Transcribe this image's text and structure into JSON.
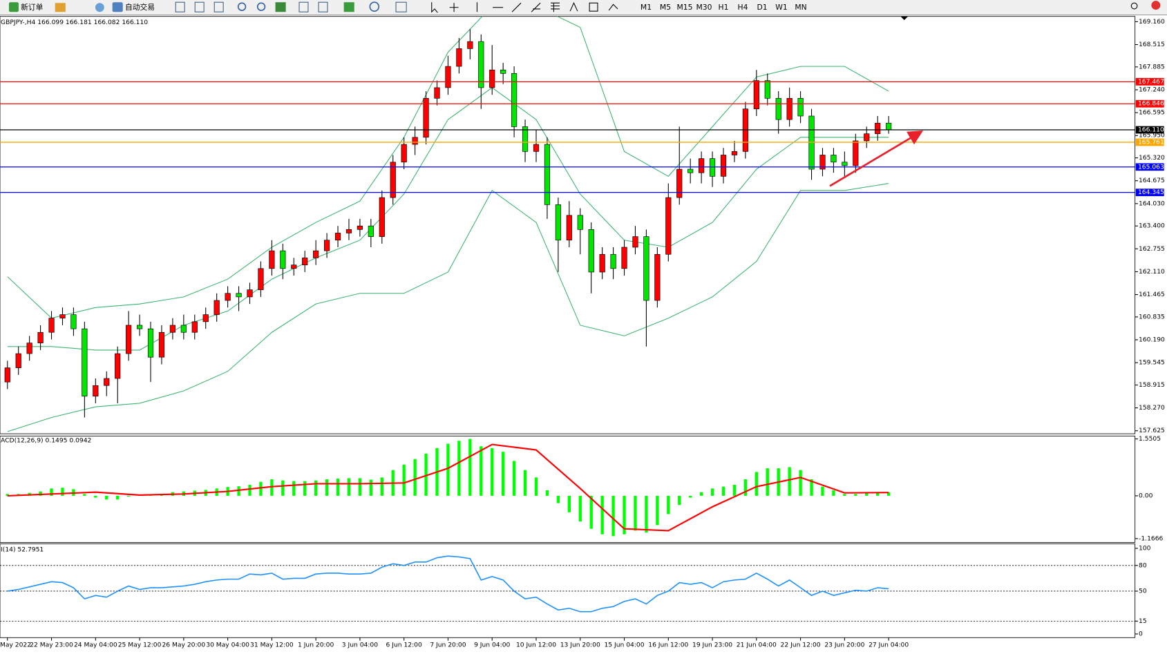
{
  "toolbar": {
    "new_order": "新订单",
    "auto_trade": "自动交易",
    "timeframes": [
      "M1",
      "M5",
      "M15",
      "M30",
      "H1",
      "H4",
      "D1",
      "W1",
      "MN"
    ]
  },
  "chart_data": {
    "type": "candlestick",
    "title": "GBPJPY-,H4 166.099 166.181 166.082 166.110",
    "categories": [
      "May 2022",
      null,
      null,
      null,
      "22 May 23:00",
      null,
      null,
      null,
      "24 May 04:00",
      null,
      null,
      null,
      "25 May 12:00",
      null,
      null,
      null,
      "26 May 20:00",
      null,
      null,
      null,
      "30 May 04:00",
      null,
      null,
      null,
      "31 May 12:00",
      null,
      null,
      null,
      "1 Jun 20:00",
      null,
      null,
      null,
      "3 Jun 04:00",
      null,
      null,
      null,
      "6 Jun 12:00",
      null,
      null,
      null,
      "7 Jun 20:00",
      null,
      null,
      null,
      "9 Jun 04:00",
      null,
      null,
      null,
      "10 Jun 12:00",
      null,
      null,
      null,
      "13 Jun 20:00",
      null,
      null,
      null,
      "15 Jun 04:00",
      null,
      null,
      null,
      "16 Jun 12:00",
      null,
      null,
      null,
      "19 Jun 23:00",
      null,
      null,
      null,
      "21 Jun 04:00",
      null,
      null,
      null,
      "22 Jun 12:00",
      null,
      null,
      null,
      "23 Jun 20:00",
      null,
      null,
      null,
      "27 Jun 04:00"
    ],
    "open": [
      159.0,
      159.4,
      159.8,
      160.1,
      160.4,
      160.8,
      160.9,
      160.5,
      158.6,
      158.9,
      159.1,
      159.8,
      160.6,
      160.5,
      159.7,
      160.4,
      160.6,
      160.4,
      160.7,
      160.9,
      161.3,
      161.5,
      161.4,
      161.6,
      162.2,
      162.7,
      162.2,
      162.3,
      162.5,
      162.7,
      163.0,
      163.2,
      163.3,
      163.4,
      163.1,
      164.2,
      165.2,
      165.7,
      165.9,
      167.0,
      167.3,
      167.9,
      168.4,
      168.6,
      167.3,
      167.8,
      167.7,
      166.2,
      165.5,
      165.7,
      164.0,
      163.0,
      163.7,
      163.3,
      162.1,
      162.6,
      162.2,
      162.8,
      163.1,
      161.3,
      162.6,
      164.2,
      165.0,
      164.9,
      165.3,
      164.8,
      165.4,
      165.5,
      166.7,
      167.5,
      167.0,
      166.4,
      167.0,
      166.5,
      165.0,
      165.4,
      165.2,
      165.1,
      165.8,
      166.0,
      166.3
    ],
    "high": [
      159.6,
      160.0,
      160.3,
      160.6,
      161.0,
      161.1,
      161.1,
      160.7,
      159.1,
      159.3,
      160.0,
      161.0,
      160.9,
      160.7,
      160.6,
      160.8,
      160.9,
      160.9,
      161.1,
      161.5,
      161.7,
      161.7,
      161.8,
      162.4,
      163.0,
      162.9,
      162.5,
      162.7,
      163.0,
      163.2,
      163.4,
      163.6,
      163.6,
      163.6,
      164.4,
      165.4,
      165.9,
      166.2,
      167.2,
      167.5,
      168.2,
      168.7,
      168.95,
      168.8,
      168.5,
      168.0,
      167.9,
      166.4,
      166.1,
      165.9,
      164.2,
      164.1,
      163.9,
      163.5,
      162.8,
      162.8,
      163.0,
      163.4,
      163.3,
      162.8,
      164.6,
      166.2,
      165.3,
      165.5,
      165.5,
      165.6,
      165.8,
      166.9,
      167.8,
      167.7,
      167.2,
      167.3,
      167.2,
      166.7,
      165.6,
      165.6,
      165.5,
      166.0,
      166.2,
      166.5,
      166.5
    ],
    "low": [
      158.8,
      159.2,
      159.6,
      159.9,
      160.2,
      160.6,
      160.3,
      158.0,
      158.4,
      158.6,
      158.4,
      159.6,
      160.3,
      159.0,
      159.5,
      160.2,
      160.2,
      160.2,
      160.5,
      160.7,
      161.1,
      161.0,
      161.2,
      161.4,
      162.0,
      161.9,
      162.0,
      162.1,
      162.3,
      162.5,
      162.8,
      163.0,
      163.1,
      162.8,
      162.9,
      164.0,
      165.0,
      165.4,
      165.7,
      166.8,
      167.1,
      167.7,
      168.1,
      166.7,
      167.1,
      167.4,
      165.9,
      165.2,
      165.2,
      163.6,
      162.1,
      162.8,
      162.6,
      161.5,
      161.9,
      161.9,
      162.0,
      162.6,
      160.0,
      161.1,
      162.4,
      164.0,
      164.6,
      164.6,
      164.5,
      164.6,
      165.2,
      165.3,
      166.5,
      166.8,
      166.0,
      166.2,
      166.3,
      164.7,
      164.8,
      164.9,
      164.8,
      164.9,
      165.6,
      165.8,
      166.0
    ],
    "close": [
      159.4,
      159.8,
      160.1,
      160.4,
      160.8,
      160.9,
      160.5,
      158.6,
      158.9,
      159.1,
      159.8,
      160.6,
      160.5,
      159.7,
      160.4,
      160.6,
      160.4,
      160.7,
      160.9,
      161.3,
      161.5,
      161.4,
      161.6,
      162.2,
      162.7,
      162.2,
      162.3,
      162.5,
      162.7,
      163.0,
      163.2,
      163.3,
      163.4,
      163.1,
      164.2,
      165.2,
      165.7,
      165.9,
      167.0,
      167.3,
      167.9,
      168.4,
      168.6,
      167.3,
      167.8,
      167.7,
      166.2,
      165.5,
      165.7,
      164.0,
      163.0,
      163.7,
      163.3,
      162.1,
      162.6,
      162.2,
      162.8,
      163.1,
      161.3,
      162.6,
      164.2,
      165.0,
      164.9,
      165.3,
      164.8,
      165.4,
      165.5,
      166.7,
      167.5,
      167.0,
      166.4,
      167.0,
      166.5,
      165.0,
      165.4,
      165.2,
      165.1,
      165.8,
      166.0,
      166.3,
      166.11
    ],
    "up_color": "#ff0000",
    "down_color": "#00e600",
    "ylim": [
      157.54,
      169.31
    ],
    "yticks": [
      {
        "value": 169.16,
        "label": "169.160"
      },
      {
        "value": 168.515,
        "label": "168.515"
      },
      {
        "value": 167.885,
        "label": "167.885"
      },
      {
        "value": 167.24,
        "label": "167.240"
      },
      {
        "value": 166.595,
        "label": "166.595"
      },
      {
        "value": 165.95,
        "label": "165.950"
      },
      {
        "value": 165.32,
        "label": "165.320"
      },
      {
        "value": 164.675,
        "label": "164.675"
      },
      {
        "value": 164.03,
        "label": "164.030"
      },
      {
        "value": 163.4,
        "label": "163.400"
      },
      {
        "value": 162.755,
        "label": "162.755"
      },
      {
        "value": 162.11,
        "label": "162.110"
      },
      {
        "value": 161.465,
        "label": "161.465"
      },
      {
        "value": 160.835,
        "label": "160.835"
      },
      {
        "value": 160.19,
        "label": "160.190"
      },
      {
        "value": 159.545,
        "label": "159.545"
      },
      {
        "value": 158.915,
        "label": "158.915"
      },
      {
        "value": 158.27,
        "label": "158.270"
      },
      {
        "value": 157.625,
        "label": "157.625"
      }
    ],
    "levels": [
      {
        "value": 167.467,
        "color": "#ff0000"
      },
      {
        "value": 166.846,
        "color": "#ff0000"
      },
      {
        "value": 166.11,
        "label": "166.110",
        "color": "#000000"
      },
      {
        "value": 165.761,
        "color": "#ffa500"
      },
      {
        "value": 165.063,
        "color": "#0000ff"
      },
      {
        "value": 164.345,
        "color": "#0000ff"
      }
    ],
    "bollinger": {
      "color": "#3cb371",
      "lines": [
        {
          "x": [
            0,
            4,
            8,
            12,
            16,
            20,
            24,
            28,
            32,
            36,
            40,
            44,
            48,
            52,
            56,
            60,
            64,
            68,
            72,
            76,
            80
          ],
          "values": [
            161.97,
            160.8,
            161.1,
            161.2,
            161.4,
            161.9,
            162.8,
            163.5,
            164.1,
            165.9,
            168.3,
            169.6,
            169.6,
            169.0,
            165.5,
            164.8,
            166.2,
            167.6,
            167.9,
            167.9,
            167.2
          ]
        },
        {
          "x": [
            0,
            4,
            8,
            12,
            16,
            20,
            24,
            28,
            32,
            36,
            40,
            44,
            48,
            52,
            56,
            60,
            64,
            68,
            72,
            76,
            80
          ],
          "values": [
            160.0,
            160.0,
            159.9,
            159.9,
            160.6,
            161.0,
            161.9,
            162.5,
            163.0,
            164.3,
            166.4,
            167.3,
            166.4,
            164.3,
            163.0,
            162.8,
            163.5,
            165.0,
            165.9,
            165.9,
            165.9
          ]
        },
        {
          "x": [
            0,
            4,
            8,
            12,
            16,
            20,
            24,
            28,
            32,
            36,
            40,
            44,
            48,
            52,
            56,
            60,
            64,
            68,
            72,
            76,
            80
          ],
          "values": [
            157.6,
            158.0,
            158.3,
            158.4,
            158.75,
            159.3,
            160.4,
            161.2,
            161.5,
            161.5,
            162.1,
            164.4,
            163.5,
            160.6,
            160.3,
            160.8,
            161.4,
            162.4,
            164.4,
            164.4,
            164.6
          ]
        }
      ]
    },
    "macd": {
      "label": "ACD(12,26,9) 0.1495 0.0942",
      "ylim": [
        -1.27,
        1.63
      ],
      "yticks": [
        1.5505,
        {
          "value": 0,
          "label": "0.00"
        },
        -1.1666
      ],
      "histogram": {
        "color": "#00ff00",
        "values": [
          0.05,
          0.05,
          0.08,
          0.12,
          0.2,
          0.22,
          0.18,
          0.05,
          -0.05,
          -0.1,
          -0.1,
          -0.02,
          0.02,
          0.02,
          0.05,
          0.1,
          0.12,
          0.14,
          0.16,
          0.2,
          0.24,
          0.26,
          0.3,
          0.38,
          0.45,
          0.42,
          0.4,
          0.4,
          0.42,
          0.45,
          0.47,
          0.48,
          0.48,
          0.44,
          0.5,
          0.7,
          0.85,
          1.0,
          1.15,
          1.3,
          1.42,
          1.5,
          1.55,
          1.35,
          1.3,
          1.2,
          0.95,
          0.7,
          0.5,
          0.15,
          -0.2,
          -0.45,
          -0.7,
          -0.9,
          -1.05,
          -1.1,
          -1.05,
          -0.95,
          -1.0,
          -0.8,
          -0.5,
          -0.25,
          -0.05,
          0.1,
          0.2,
          0.25,
          0.3,
          0.45,
          0.65,
          0.75,
          0.75,
          0.78,
          0.7,
          0.45,
          0.25,
          0.15,
          0.05,
          0.05,
          0.07,
          0.1,
          0.1
        ]
      },
      "signal": {
        "color": "#ff0000",
        "x": [
          0,
          4,
          8,
          12,
          16,
          20,
          24,
          28,
          32,
          36,
          40,
          44,
          48,
          52,
          56,
          60,
          64,
          68,
          72,
          76,
          80
        ],
        "values": [
          0.0,
          0.05,
          0.1,
          0.02,
          0.05,
          0.12,
          0.25,
          0.33,
          0.33,
          0.35,
          0.75,
          1.4,
          1.25,
          0.2,
          -0.9,
          -0.95,
          -0.3,
          0.25,
          0.5,
          0.08,
          0.09
        ]
      }
    },
    "rsi": {
      "label": "I(14) 52.7951",
      "color": "#1e90ff",
      "ylim": [
        -4.3,
        105.2
      ],
      "yticks": [
        100,
        80,
        50,
        15,
        0
      ],
      "levels": [
        80,
        50,
        15
      ],
      "values": [
        50,
        52,
        55,
        58,
        61,
        60,
        54,
        41,
        45,
        43,
        50,
        56,
        52,
        54,
        54,
        55,
        56,
        58,
        61,
        63,
        64,
        64,
        70,
        69,
        71,
        64,
        65,
        65,
        70,
        71,
        71,
        70,
        70,
        71,
        78,
        82,
        80,
        84,
        84,
        89,
        91,
        90,
        88,
        63,
        67,
        63,
        50,
        41,
        43,
        35,
        28,
        30,
        26,
        26,
        30,
        32,
        38,
        41,
        35,
        45,
        50,
        60,
        58,
        60,
        54,
        61,
        63,
        64,
        71,
        64,
        56,
        63,
        54,
        45,
        50,
        45,
        48,
        51,
        50,
        54,
        52.8
      ]
    }
  }
}
